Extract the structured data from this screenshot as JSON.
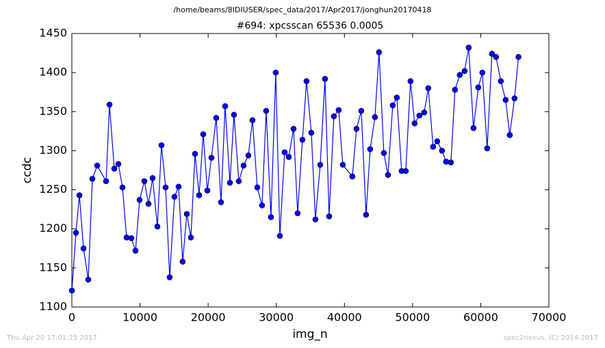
{
  "chart_data": {
    "type": "line",
    "suptitle": "/home/beams/8IDIUSER/spec_data/2017/Apr2017/jonghun20170418",
    "title": "#694: xpcsscan 65536 0.0005",
    "xlabel": "img_n",
    "ylabel": "ccdc",
    "footer_left": "Thu Apr 20 17:01:25 2017",
    "footer_right": "spec2nexus, (C) 2014-2017",
    "xlim": [
      0,
      70000
    ],
    "xticks": [
      0,
      10000,
      20000,
      30000,
      40000,
      50000,
      60000,
      70000
    ],
    "ylim": [
      1100,
      1450
    ],
    "yticks": [
      1100,
      1150,
      1200,
      1250,
      1300,
      1350,
      1400,
      1450
    ],
    "series": [
      {
        "color": "#0000ff",
        "x": [
          0,
          602,
          1105,
          1707,
          2410,
          3012,
          3715,
          5020,
          5522,
          6225,
          6827,
          7430,
          8032,
          8735,
          9337,
          9940,
          10642,
          11245,
          11847,
          12550,
          13152,
          13755,
          14357,
          15060,
          15662,
          16265,
          16867,
          17470,
          18072,
          18674,
          19277,
          19879,
          20482,
          21184,
          21887,
          22490,
          23193,
          23795,
          24498,
          25200,
          25903,
          26506,
          27208,
          27911,
          28514,
          29216,
          29919,
          30522,
          31224,
          31827,
          32530,
          33132,
          33835,
          34437,
          35140,
          35742,
          36445,
          37148,
          37750,
          38453,
          39156,
          39758,
          41164,
          41766,
          42469,
          43172,
          43774,
          44477,
          45080,
          45782,
          46385,
          47088,
          47690,
          48393,
          48995,
          49698,
          50300,
          51003,
          51706,
          52308,
          53011,
          53614,
          54316,
          54919,
          55622,
          56224,
          56927,
          57630,
          58232,
          58935,
          59638,
          60240,
          60943,
          61646,
          62248,
          62951,
          63654,
          64256,
          64959,
          65536
        ],
        "values": [
          1121,
          1195,
          1243,
          1175,
          1135,
          1264,
          1281,
          1261,
          1359,
          1277,
          1283,
          1253,
          1189,
          1188,
          1172,
          1237,
          1261,
          1232,
          1265,
          1203,
          1307,
          1253,
          1138,
          1241,
          1254,
          1158,
          1219,
          1189,
          1296,
          1243,
          1321,
          1249,
          1291,
          1342,
          1234,
          1357,
          1259,
          1346,
          1261,
          1281,
          1294,
          1339,
          1253,
          1230,
          1351,
          1215,
          1400,
          1191,
          1298,
          1292,
          1328,
          1220,
          1314,
          1389,
          1323,
          1212,
          1282,
          1392,
          1216,
          1344,
          1352,
          1282,
          1267,
          1328,
          1351,
          1218,
          1302,
          1343,
          1426,
          1297,
          1269,
          1358,
          1368,
          1274,
          1274,
          1389,
          1335,
          1345,
          1349,
          1380,
          1305,
          1312,
          1300,
          1286,
          1285,
          1378,
          1397,
          1402,
          1432,
          1329,
          1381,
          1400,
          1303,
          1424,
          1420,
          1389,
          1365,
          1320,
          1367,
          1420
        ]
      }
    ]
  }
}
